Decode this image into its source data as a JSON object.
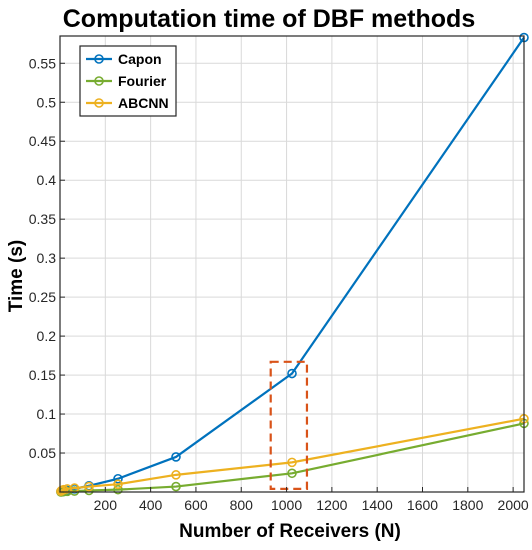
{
  "chart_data": {
    "type": "line",
    "title": "Computation time of DBF methods",
    "xlabel": "Number of Receivers (N)",
    "ylabel": "Time (s)",
    "xlim": [
      0,
      2048
    ],
    "ylim": [
      0,
      0.585
    ],
    "xticks": [
      200,
      400,
      600,
      800,
      1000,
      1200,
      1400,
      1600,
      1800,
      2000
    ],
    "yticks": [
      0.05,
      0.1,
      0.15,
      0.2,
      0.25,
      0.3,
      0.35,
      0.4,
      0.45,
      0.5,
      0.55
    ],
    "grid": true,
    "legend": "top-left",
    "series": [
      {
        "name": "Capon",
        "color": "#0072BD",
        "x": [
          4,
          8,
          16,
          32,
          64,
          128,
          256,
          512,
          1024,
          2048
        ],
        "y": [
          0.0003,
          0.0005,
          0.001,
          0.002,
          0.004,
          0.008,
          0.017,
          0.045,
          0.152,
          0.583
        ]
      },
      {
        "name": "Fourier",
        "color": "#77AC30",
        "x": [
          4,
          8,
          16,
          32,
          64,
          128,
          256,
          512,
          1024,
          2048
        ],
        "y": [
          0.0001,
          0.0002,
          0.0004,
          0.0008,
          0.0012,
          0.002,
          0.003,
          0.007,
          0.024,
          0.088
        ]
      },
      {
        "name": "ABCNN",
        "color": "#EDB120",
        "x": [
          4,
          8,
          16,
          32,
          64,
          128,
          256,
          512,
          1024,
          2048
        ],
        "y": [
          0.001,
          0.002,
          0.003,
          0.004,
          0.005,
          0.007,
          0.01,
          0.022,
          0.038,
          0.094
        ]
      }
    ],
    "annotations": [
      {
        "type": "dashed-rectangle",
        "color": "#D95319",
        "x_range": [
          930,
          1090
        ],
        "y_range": [
          0.004,
          0.167
        ]
      }
    ]
  }
}
